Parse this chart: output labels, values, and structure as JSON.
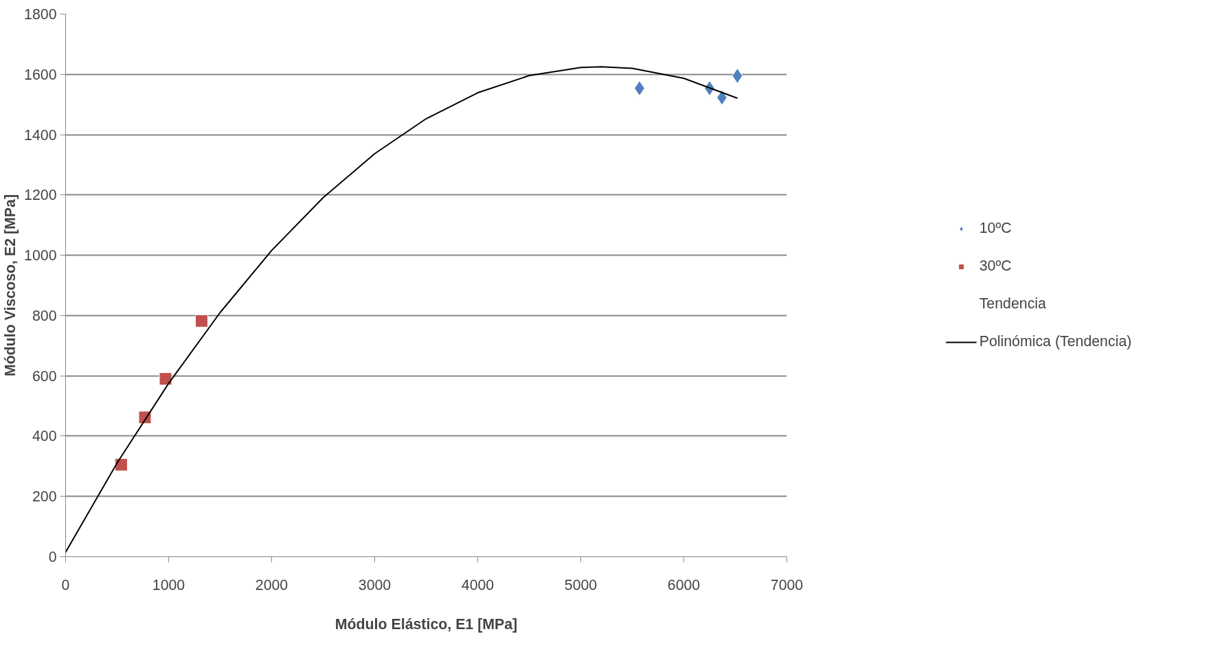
{
  "chart_data": {
    "type": "scatter",
    "xlabel": "Módulo Elástico, E1 [MPa]",
    "ylabel": "Módulo Viscoso, E2 [MPa]",
    "xlim": [
      0,
      7000
    ],
    "xticks": [
      0,
      1000,
      2000,
      3000,
      4000,
      5000,
      6000,
      7000
    ],
    "ylim": [
      0,
      1800
    ],
    "yticks": [
      0,
      200,
      400,
      600,
      800,
      1000,
      1200,
      1400,
      1600,
      1800
    ],
    "grid": "y",
    "legend": "right",
    "series": [
      {
        "name": "10ºC",
        "marker": "diamond",
        "color": "#4f81bd",
        "x": [
          5570,
          6250,
          6370,
          6520
        ],
        "values": [
          1554,
          1554,
          1523,
          1595
        ]
      },
      {
        "name": "30ºC",
        "marker": "square",
        "color": "#c0504d",
        "x": [
          540,
          770,
          970,
          1320
        ],
        "values": [
          305,
          462,
          590,
          782
        ]
      },
      {
        "name": "Tendencia",
        "marker": "none"
      },
      {
        "name": "Polinómica (Tendencia)",
        "type": "line",
        "marker": "none",
        "line_style": "solid",
        "color": "#000000",
        "x": [
          0,
          500,
          1000,
          1500,
          2000,
          2500,
          3000,
          3500,
          4000,
          4500,
          5000,
          5200,
          5500,
          6000,
          6520
        ],
        "values": [
          15,
          311,
          575,
          810,
          1016,
          1191,
          1337,
          1453,
          1539,
          1596,
          1623,
          1625,
          1620,
          1587,
          1521
        ]
      }
    ]
  }
}
